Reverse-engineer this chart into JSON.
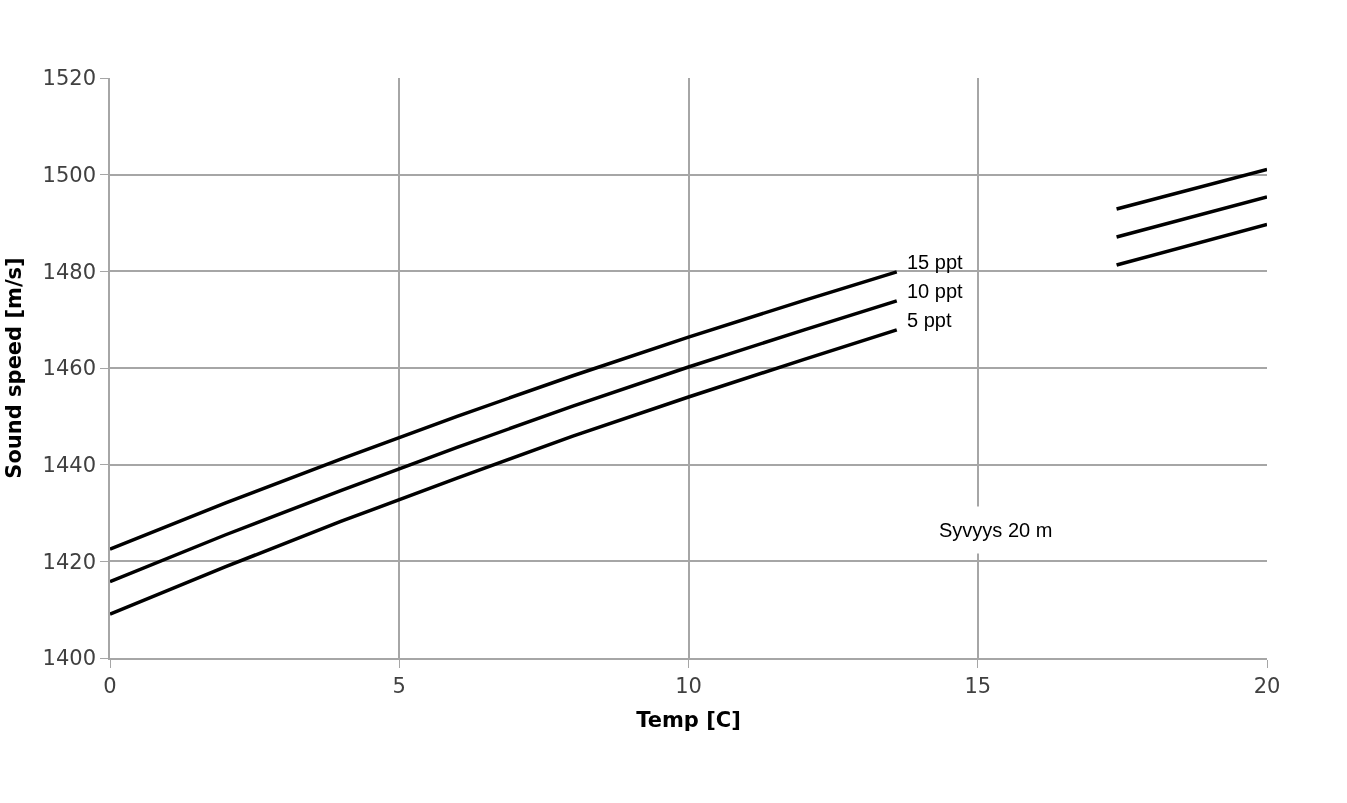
{
  "chart_data": {
    "type": "line",
    "xlabel": "Temp [C]",
    "ylabel": "Sound speed [m/s]",
    "x": [
      0,
      2,
      4,
      6,
      8,
      10,
      12,
      13.6,
      15.5,
      17.4,
      20
    ],
    "series": [
      {
        "name": "15 ppt",
        "color": "#000000",
        "values": [
          1422.5,
          1432.1,
          1441.2,
          1450.0,
          1458.4,
          1466.4,
          1474.0,
          1479.9,
          null,
          1492.9,
          1501.1
        ]
      },
      {
        "name": "10 ppt",
        "color": "#000000",
        "values": [
          1415.8,
          1425.5,
          1434.7,
          1443.6,
          1452.1,
          1460.2,
          1467.9,
          1473.9,
          null,
          1487.1,
          1495.4
        ]
      },
      {
        "name": "5 ppt",
        "color": "#000000",
        "values": [
          1409.1,
          1418.9,
          1428.3,
          1437.2,
          1445.9,
          1454.0,
          1461.8,
          1467.9,
          null,
          1481.3,
          1489.7
        ]
      }
    ],
    "annotations": [
      "Syvyys 20 m"
    ],
    "xlim": [
      0,
      20
    ],
    "xticks": [
      0,
      5,
      10,
      15,
      20
    ],
    "ylim": [
      1400,
      1520
    ],
    "yticks": [
      1400,
      1420,
      1440,
      1460,
      1480,
      1500,
      1520
    ],
    "grid": true,
    "legend": false,
    "marker": "none",
    "line_style": "solid"
  }
}
